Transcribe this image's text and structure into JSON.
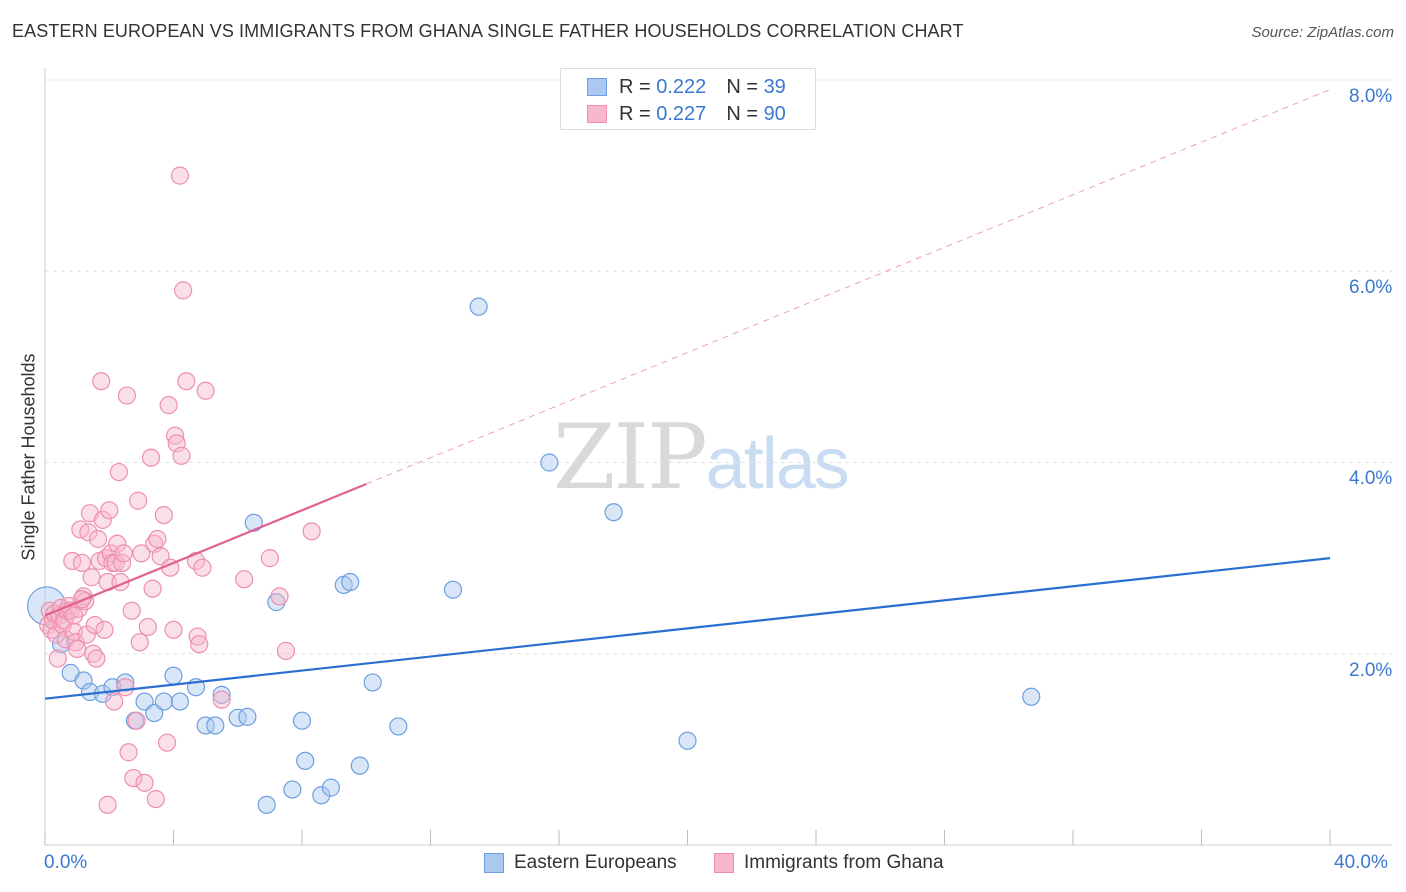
{
  "title": "EASTERN EUROPEAN VS IMMIGRANTS FROM GHANA SINGLE FATHER HOUSEHOLDS CORRELATION CHART",
  "source": "Source: ZipAtlas.com",
  "watermark": {
    "zip": "ZIP",
    "atlas": "atlas"
  },
  "legend": {
    "r_label": "R =",
    "n_label": "N =",
    "rows": [
      {
        "r": "0.222",
        "n": "39",
        "fill": "#aac8f0",
        "stroke": "#6e9fe0"
      },
      {
        "r": "0.227",
        "n": "90",
        "fill": "#f7b8cc",
        "stroke": "#ee8fae"
      }
    ]
  },
  "chart_data": {
    "type": "scatter",
    "title": "EASTERN EUROPEAN VS IMMIGRANTS FROM GHANA SINGLE FATHER HOUSEHOLDS CORRELATION CHART",
    "xlabel": "",
    "ylabel": "Single Father Households",
    "xlim": [
      0,
      40
    ],
    "ylim": [
      0,
      8
    ],
    "x_tick_labels": [
      "0.0%",
      "40.0%"
    ],
    "y_ticks": [
      2,
      4,
      6,
      8
    ],
    "y_tick_labels": [
      "2.0%",
      "4.0%",
      "6.0%",
      "8.0%"
    ],
    "series": [
      {
        "name": "Eastern Europeans",
        "color": "#6e9fe0",
        "fill": "#aac8f0",
        "line_color": "#2a6fd0",
        "r": 0.222,
        "n": 39,
        "trend": {
          "x0": 0,
          "y0": 1.53,
          "x1": 40,
          "y1": 3.0,
          "dashed_from": null
        },
        "points": [
          {
            "x": 0.05,
            "y": 2.5,
            "big": true
          },
          {
            "x": 0.5,
            "y": 2.1
          },
          {
            "x": 0.8,
            "y": 1.8
          },
          {
            "x": 1.2,
            "y": 1.72
          },
          {
            "x": 1.4,
            "y": 1.6
          },
          {
            "x": 1.8,
            "y": 1.58
          },
          {
            "x": 2.1,
            "y": 1.65
          },
          {
            "x": 2.5,
            "y": 1.7
          },
          {
            "x": 2.8,
            "y": 1.3
          },
          {
            "x": 3.1,
            "y": 1.5
          },
          {
            "x": 3.4,
            "y": 1.38
          },
          {
            "x": 3.7,
            "y": 1.5
          },
          {
            "x": 4.0,
            "y": 1.77
          },
          {
            "x": 4.2,
            "y": 1.5
          },
          {
            "x": 4.7,
            "y": 1.65
          },
          {
            "x": 5.0,
            "y": 1.25
          },
          {
            "x": 5.3,
            "y": 1.25
          },
          {
            "x": 5.5,
            "y": 1.57
          },
          {
            "x": 6.0,
            "y": 1.33
          },
          {
            "x": 6.3,
            "y": 1.34
          },
          {
            "x": 6.5,
            "y": 3.37
          },
          {
            "x": 6.9,
            "y": 0.42
          },
          {
            "x": 7.2,
            "y": 2.54
          },
          {
            "x": 7.7,
            "y": 0.58
          },
          {
            "x": 8.0,
            "y": 1.3
          },
          {
            "x": 8.1,
            "y": 0.88
          },
          {
            "x": 8.6,
            "y": 0.52
          },
          {
            "x": 8.9,
            "y": 0.6
          },
          {
            "x": 9.3,
            "y": 2.72
          },
          {
            "x": 9.5,
            "y": 2.75
          },
          {
            "x": 9.8,
            "y": 0.83
          },
          {
            "x": 10.2,
            "y": 1.7
          },
          {
            "x": 11.0,
            "y": 1.24
          },
          {
            "x": 12.7,
            "y": 2.67
          },
          {
            "x": 13.5,
            "y": 5.63
          },
          {
            "x": 15.7,
            "y": 4.0
          },
          {
            "x": 17.7,
            "y": 3.48
          },
          {
            "x": 20.0,
            "y": 1.09
          },
          {
            "x": 30.7,
            "y": 1.55
          }
        ]
      },
      {
        "name": "Immigrants from Ghana",
        "color": "#ee8fae",
        "fill": "#f7b8cc",
        "line_color": "#e0608e",
        "r": 0.227,
        "n": 90,
        "trend": {
          "x0": 0,
          "y0": 2.4,
          "x1": 40,
          "y1": 7.9,
          "dashed_from": 10
        },
        "points": [
          {
            "x": 0.1,
            "y": 2.3
          },
          {
            "x": 0.15,
            "y": 2.45
          },
          {
            "x": 0.2,
            "y": 2.25
          },
          {
            "x": 0.25,
            "y": 2.35
          },
          {
            "x": 0.3,
            "y": 2.42
          },
          {
            "x": 0.35,
            "y": 2.2
          },
          {
            "x": 0.4,
            "y": 1.95
          },
          {
            "x": 0.45,
            "y": 2.4
          },
          {
            "x": 0.5,
            "y": 2.48
          },
          {
            "x": 0.55,
            "y": 2.3
          },
          {
            "x": 0.6,
            "y": 2.35
          },
          {
            "x": 0.65,
            "y": 2.15
          },
          {
            "x": 0.7,
            "y": 2.45
          },
          {
            "x": 0.75,
            "y": 2.5
          },
          {
            "x": 0.8,
            "y": 2.45
          },
          {
            "x": 0.85,
            "y": 2.97
          },
          {
            "x": 0.9,
            "y": 2.23
          },
          {
            "x": 0.95,
            "y": 2.12
          },
          {
            "x": 1.0,
            "y": 2.05
          },
          {
            "x": 1.05,
            "y": 2.47
          },
          {
            "x": 1.1,
            "y": 3.3
          },
          {
            "x": 1.15,
            "y": 2.95
          },
          {
            "x": 1.2,
            "y": 2.6
          },
          {
            "x": 1.25,
            "y": 2.55
          },
          {
            "x": 1.3,
            "y": 2.2
          },
          {
            "x": 1.35,
            "y": 3.27
          },
          {
            "x": 1.4,
            "y": 3.47
          },
          {
            "x": 1.45,
            "y": 2.8
          },
          {
            "x": 1.5,
            "y": 2.0
          },
          {
            "x": 1.55,
            "y": 2.3
          },
          {
            "x": 1.6,
            "y": 1.95
          },
          {
            "x": 1.65,
            "y": 3.2
          },
          {
            "x": 1.7,
            "y": 2.97
          },
          {
            "x": 1.75,
            "y": 4.85
          },
          {
            "x": 1.8,
            "y": 3.4
          },
          {
            "x": 1.85,
            "y": 2.25
          },
          {
            "x": 1.9,
            "y": 3.0
          },
          {
            "x": 1.95,
            "y": 2.75
          },
          {
            "x": 2.0,
            "y": 3.5
          },
          {
            "x": 2.05,
            "y": 3.05
          },
          {
            "x": 2.1,
            "y": 2.95
          },
          {
            "x": 2.15,
            "y": 1.5
          },
          {
            "x": 2.2,
            "y": 2.95
          },
          {
            "x": 2.25,
            "y": 3.15
          },
          {
            "x": 2.3,
            "y": 3.9
          },
          {
            "x": 2.35,
            "y": 2.75
          },
          {
            "x": 2.4,
            "y": 2.95
          },
          {
            "x": 2.45,
            "y": 3.05
          },
          {
            "x": 2.5,
            "y": 1.65
          },
          {
            "x": 2.55,
            "y": 4.7
          },
          {
            "x": 2.6,
            "y": 0.97
          },
          {
            "x": 2.7,
            "y": 2.45
          },
          {
            "x": 2.75,
            "y": 0.7
          },
          {
            "x": 2.85,
            "y": 1.3
          },
          {
            "x": 2.9,
            "y": 3.6
          },
          {
            "x": 2.95,
            "y": 2.12
          },
          {
            "x": 3.0,
            "y": 3.05
          },
          {
            "x": 3.1,
            "y": 0.65
          },
          {
            "x": 3.2,
            "y": 2.28
          },
          {
            "x": 3.3,
            "y": 4.05
          },
          {
            "x": 3.35,
            "y": 2.68
          },
          {
            "x": 3.4,
            "y": 3.15
          },
          {
            "x": 3.45,
            "y": 0.48
          },
          {
            "x": 3.5,
            "y": 3.2
          },
          {
            "x": 3.6,
            "y": 3.02
          },
          {
            "x": 3.7,
            "y": 3.45
          },
          {
            "x": 3.8,
            "y": 1.07
          },
          {
            "x": 3.85,
            "y": 4.6
          },
          {
            "x": 3.9,
            "y": 2.9
          },
          {
            "x": 4.0,
            "y": 2.25
          },
          {
            "x": 4.05,
            "y": 4.28
          },
          {
            "x": 4.1,
            "y": 4.2
          },
          {
            "x": 4.2,
            "y": 7.0
          },
          {
            "x": 4.25,
            "y": 4.07
          },
          {
            "x": 4.3,
            "y": 5.8
          },
          {
            "x": 4.4,
            "y": 4.85
          },
          {
            "x": 4.7,
            "y": 2.97
          },
          {
            "x": 4.75,
            "y": 2.18
          },
          {
            "x": 4.8,
            "y": 2.1
          },
          {
            "x": 4.9,
            "y": 2.9
          },
          {
            "x": 5.0,
            "y": 4.75
          },
          {
            "x": 5.5,
            "y": 1.52
          },
          {
            "x": 6.2,
            "y": 2.78
          },
          {
            "x": 7.0,
            "y": 3.0
          },
          {
            "x": 7.3,
            "y": 2.6
          },
          {
            "x": 7.5,
            "y": 2.03
          },
          {
            "x": 8.3,
            "y": 3.28
          },
          {
            "x": 1.95,
            "y": 0.42
          },
          {
            "x": 1.15,
            "y": 2.57
          },
          {
            "x": 0.9,
            "y": 2.4
          }
        ]
      }
    ]
  }
}
